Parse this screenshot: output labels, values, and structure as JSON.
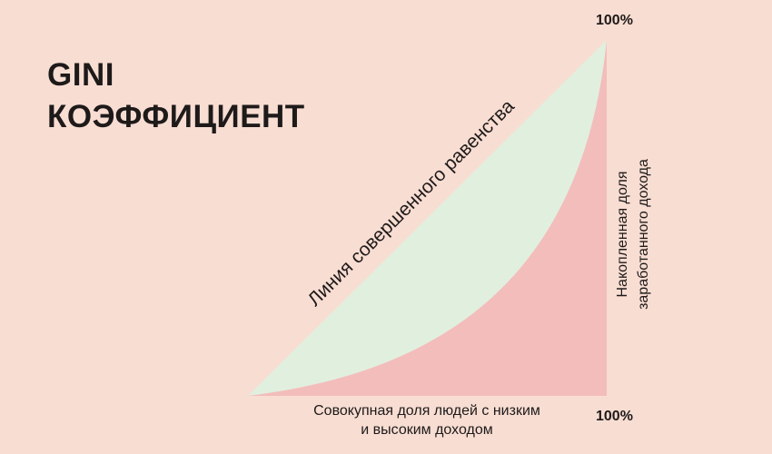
{
  "title": {
    "line1": "GINI",
    "line2": "КОЭФФИЦИЕНТ"
  },
  "equality_line_label": "Линия совершенного равенства",
  "x_axis": {
    "label_line1": "Совокупная доля людей с низким",
    "label_line2": "и высоким доходом",
    "max_label": "100%"
  },
  "y_axis": {
    "label_line1": "Накопленная доля",
    "label_line2": "заработанного дохода",
    "max_label": "100%"
  },
  "colors": {
    "background": "#f8ddd2",
    "equality_area": "#e1efdf",
    "lorenz_area": "#f3bdbb",
    "text": "#1e1a1a"
  }
}
